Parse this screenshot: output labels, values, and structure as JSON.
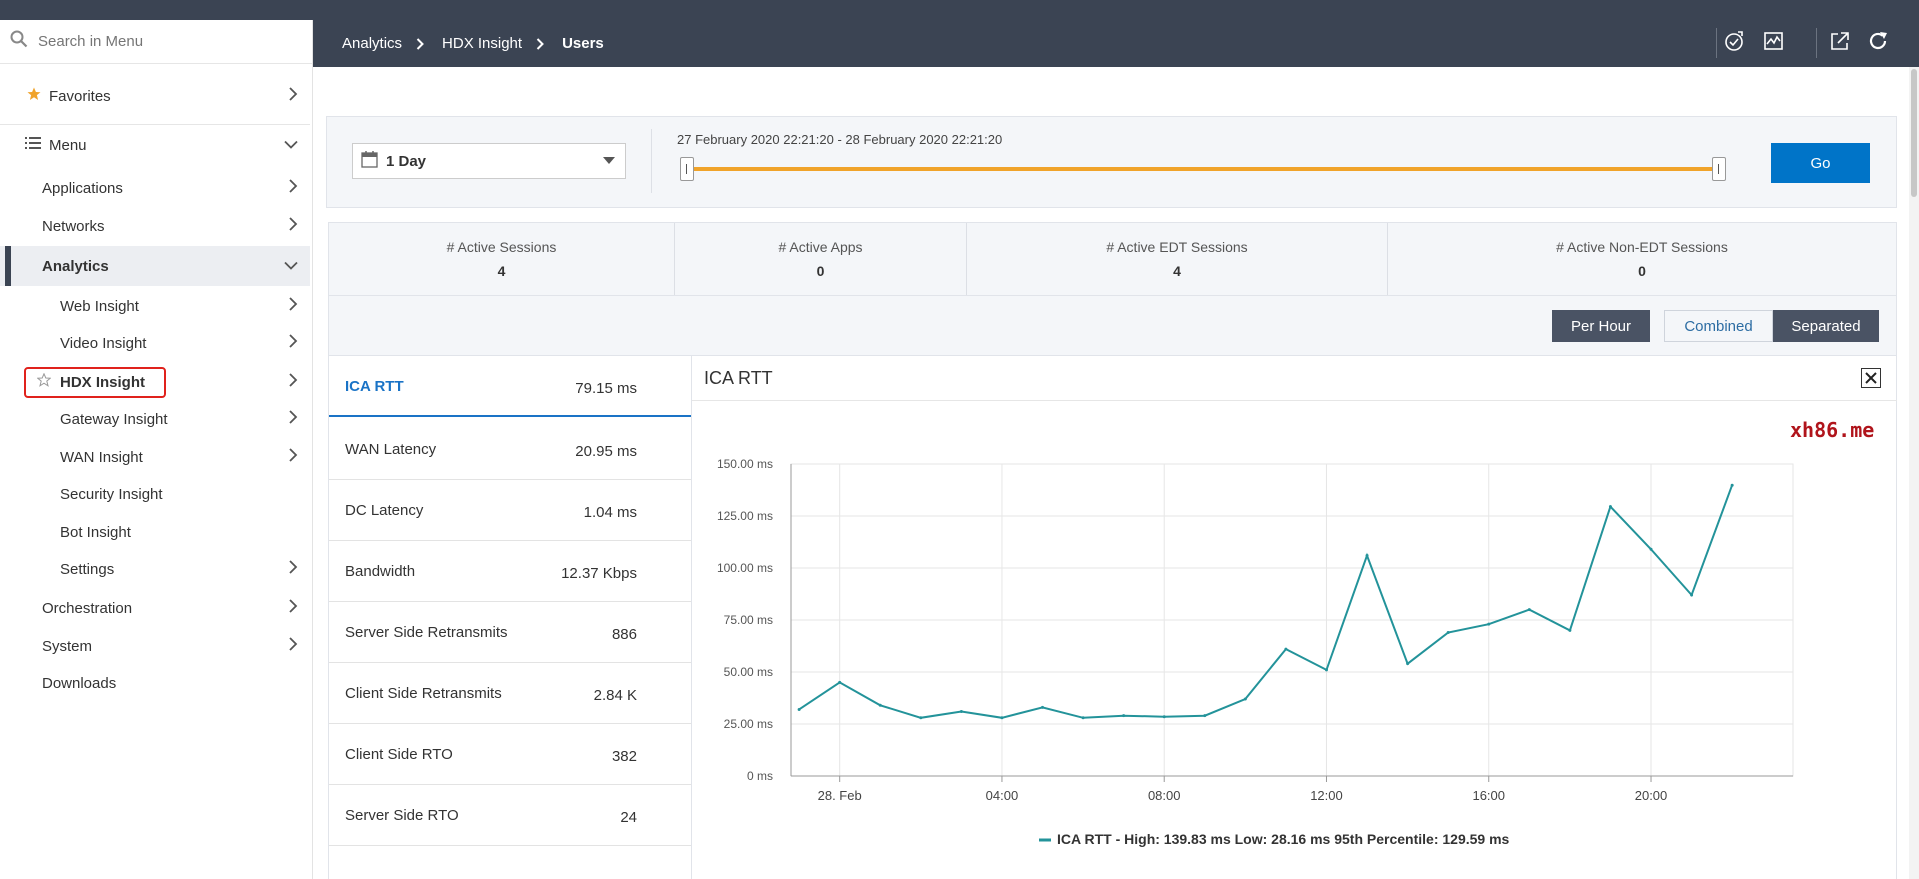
{
  "search": {
    "placeholder": "Search in Menu"
  },
  "sidebar": {
    "favorites": "Favorites",
    "menu": "Menu",
    "items": [
      {
        "label": "Applications"
      },
      {
        "label": "Networks"
      },
      {
        "label": "Analytics"
      },
      {
        "label": "Web Insight"
      },
      {
        "label": "Video Insight"
      },
      {
        "label": "HDX Insight"
      },
      {
        "label": "Gateway Insight"
      },
      {
        "label": "WAN Insight"
      },
      {
        "label": "Security Insight"
      },
      {
        "label": "Bot Insight"
      },
      {
        "label": "Settings"
      },
      {
        "label": "Orchestration"
      },
      {
        "label": "System"
      },
      {
        "label": "Downloads"
      }
    ]
  },
  "breadcrumb": [
    "Analytics",
    "HDX Insight",
    "Users"
  ],
  "filter": {
    "duration": "1 Day",
    "range": "27 February 2020 22:21:20 - 28 February 2020 22:21:20",
    "go": "Go",
    "slider_start": 0,
    "slider_end": 1
  },
  "stats": [
    {
      "label": "# Active Sessions",
      "value": "4"
    },
    {
      "label": "# Active Apps",
      "value": "0"
    },
    {
      "label": "# Active EDT Sessions",
      "value": "4"
    },
    {
      "label": "# Active Non-EDT Sessions",
      "value": "0"
    }
  ],
  "toolbar": {
    "per_hour": "Per Hour",
    "combined": "Combined",
    "separated": "Separated"
  },
  "metrics": [
    {
      "name": "ICA RTT",
      "value": "79.15 ms"
    },
    {
      "name": "WAN Latency",
      "value": "20.95 ms"
    },
    {
      "name": "DC Latency",
      "value": "1.04 ms"
    },
    {
      "name": "Bandwidth",
      "value": "12.37 Kbps"
    },
    {
      "name": "Server Side Retransmits",
      "value": "886"
    },
    {
      "name": "Client Side Retransmits",
      "value": "2.84 K"
    },
    {
      "name": "Client Side RTO",
      "value": "382"
    },
    {
      "name": "Server Side RTO",
      "value": "24"
    }
  ],
  "chart": {
    "title": "ICA RTT"
  },
  "watermark": "xh86.me",
  "colors": {
    "accent": "#0074c8",
    "header": "#3b4453",
    "line": "#23939a",
    "slider": "#f0a32a",
    "highlight": "#e0221c"
  },
  "chart_data": {
    "type": "line",
    "title": "ICA RTT",
    "ylim": [
      0,
      150
    ],
    "xlim": [
      -1.2,
      23.5
    ],
    "yticks": [
      0,
      25,
      50,
      75,
      100,
      125,
      150
    ],
    "ytick_labels": [
      "0 ms",
      "25.00 ms",
      "50.00 ms",
      "75.00 ms",
      "100.00 ms",
      "125.00 ms",
      "150.00 ms"
    ],
    "xticks": [
      0,
      4,
      8,
      12,
      16,
      20
    ],
    "xtick_labels": [
      "28. Feb",
      "04:00",
      "08:00",
      "12:00",
      "16:00",
      "20:00"
    ],
    "series": [
      {
        "name": "ICA RTT",
        "x": [
          -1,
          0,
          1,
          2,
          3,
          4,
          5,
          6,
          7,
          8,
          9,
          10,
          11,
          12,
          13,
          14,
          15,
          16,
          17,
          18,
          19,
          20,
          21,
          22
        ],
        "values": [
          32,
          45,
          34,
          28,
          31,
          28,
          33,
          28,
          29,
          28.5,
          29,
          37,
          61,
          51,
          106,
          54,
          69,
          73,
          80,
          70,
          129.5,
          109,
          87,
          139.8
        ]
      }
    ],
    "legend": "ICA RTT - High: 139.83 ms Low: 28.16 ms 95th Percentile: 129.59 ms",
    "grid": true,
    "legend_position": "bottom-center"
  }
}
